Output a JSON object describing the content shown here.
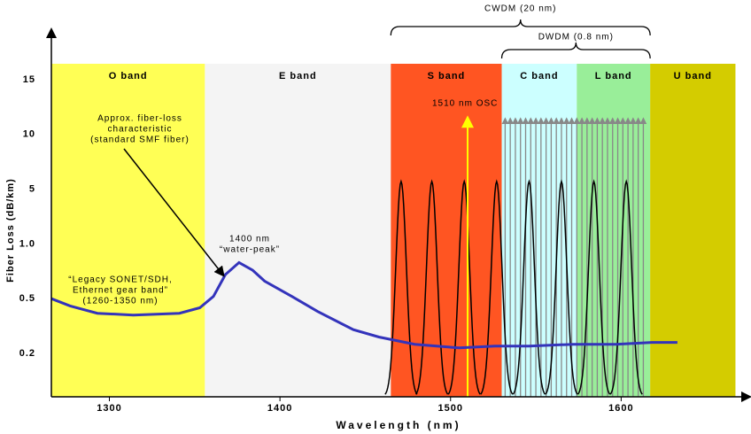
{
  "chart_data": {
    "type": "line",
    "xlabel": "Wavelength (nm)",
    "ylabel": "Fiber Loss (dB/km)",
    "xlim": [
      1266,
      1673
    ],
    "xticks": [
      1300,
      1400,
      1500,
      1600
    ],
    "yscale": "tick-interpolated",
    "yticks": [
      0.2,
      0.5,
      {
        "value": 1,
        "label": "1.0"
      },
      5,
      10,
      15
    ],
    "bands": [
      {
        "name": "O band",
        "start": 1266,
        "end": 1356,
        "color": "#ffff55"
      },
      {
        "name": "E band",
        "start": 1356,
        "end": 1465,
        "color": "#f4f4f4"
      },
      {
        "name": "S band",
        "start": 1465,
        "end": 1530,
        "color": "#ff5522"
      },
      {
        "name": "C band",
        "start": 1530,
        "end": 1574,
        "color": "#ccffff"
      },
      {
        "name": "L band",
        "start": 1574,
        "end": 1617,
        "color": "#99ee99"
      },
      {
        "name": "U band",
        "start": 1617,
        "end": 1667,
        "color": "#d4cc00"
      }
    ],
    "series": [
      {
        "name": "Approx. fiber-loss characteristic",
        "color": "#3333bb",
        "x": [
          1266,
          1277,
          1293,
          1314,
          1341,
          1353,
          1361,
          1368,
          1376,
          1384,
          1391,
          1407,
          1422,
          1443,
          1458,
          1479,
          1505,
          1526,
          1546,
          1572,
          1597,
          1618,
          1633
        ],
        "values": [
          0.5,
          0.46,
          0.42,
          0.41,
          0.42,
          0.45,
          0.52,
          0.72,
          0.83,
          0.76,
          0.66,
          0.52,
          0.43,
          0.33,
          0.29,
          0.25,
          0.23,
          0.24,
          0.24,
          0.25,
          0.25,
          0.26,
          0.26
        ]
      }
    ],
    "cwdm_channels": [
      1471,
      1489,
      1508,
      1527,
      1546,
      1565,
      1584,
      1603
    ],
    "channel_peak": 5.7,
    "dwdm_channels": [
      1532,
      1535,
      1538,
      1541,
      1544,
      1547,
      1550,
      1553,
      1556,
      1559,
      1562,
      1565,
      1568,
      1571,
      1574,
      1577,
      1580,
      1583,
      1586,
      1589,
      1592,
      1595,
      1598,
      1601,
      1604,
      1607,
      1610,
      1613
    ],
    "arrow_top": 11.5,
    "osc": {
      "label": "1510 nm OSC",
      "wavelength": 1510
    },
    "cwdm_label": "CWDM (20 nm)",
    "dwdm_label": "DWDM (0.8 nm)",
    "annotations": {
      "fiber_loss": [
        "Approx. fiber-loss",
        "characteristic",
        "(standard SMF fiber)"
      ],
      "water_peak": [
        "1400 nm",
        "“water-peak”"
      ],
      "legacy": [
        "“Legacy SONET/SDH,",
        "Ethernet gear band”",
        "(1260-1350 nm)"
      ]
    }
  }
}
